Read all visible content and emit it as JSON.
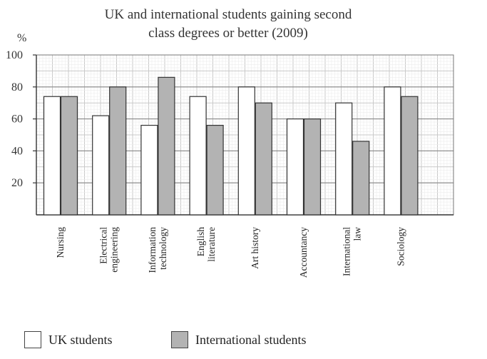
{
  "chart_data": {
    "type": "bar",
    "title": "UK and international students gaining second class degrees or better (2009)",
    "title_lines": [
      "UK and international students gaining second",
      "class degrees or better (2009)"
    ],
    "ylabel": "%",
    "xlabel": "",
    "ylim": [
      0,
      100
    ],
    "yticks": [
      20,
      40,
      60,
      80,
      100
    ],
    "grid": true,
    "legend_position": "bottom-left",
    "categories": [
      [
        "Nursing"
      ],
      [
        "Electrical",
        "engineering"
      ],
      [
        "Information",
        "technology"
      ],
      [
        "English",
        "literature"
      ],
      [
        "Art history"
      ],
      [
        "Accountancy"
      ],
      [
        "International",
        "law"
      ],
      [
        "Sociology"
      ]
    ],
    "series": [
      {
        "name": "UK students",
        "color": "#ffffff",
        "values": [
          74,
          62,
          56,
          74,
          80,
          60,
          70,
          80
        ]
      },
      {
        "name": "International students",
        "color": "#b3b3b3",
        "values": [
          74,
          80,
          86,
          56,
          70,
          60,
          46,
          74
        ]
      }
    ]
  }
}
